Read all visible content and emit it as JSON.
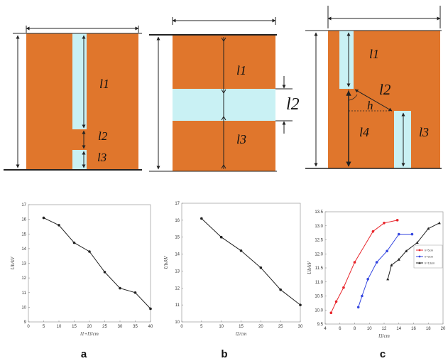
{
  "panel_labels": [
    "a",
    "b",
    "c"
  ],
  "diagrams": {
    "a": {
      "labels": [
        "l1",
        "l2",
        "l3"
      ]
    },
    "b": {
      "labels": [
        "l1",
        "l2",
        "l3"
      ]
    },
    "c": {
      "labels": [
        "l1",
        "l2",
        "h",
        "l4",
        "l3"
      ]
    }
  },
  "colors": {
    "electrode": "#E0762C",
    "gap": "#C9F1F4",
    "line": "#222222",
    "red_series": "#E8262C",
    "blue_series": "#3547E0",
    "black_series": "#222222"
  },
  "chart_data": [
    {
      "type": "line",
      "panel": "a",
      "xlabel": "l1+l3/cm",
      "ylabel": "Ub/kV",
      "xlim": [
        0,
        40
      ],
      "ylim": [
        9,
        17
      ],
      "xticks": [
        "0",
        "5",
        "10",
        "15",
        "20",
        "25",
        "30",
        "35",
        "40"
      ],
      "yticks": [
        "9",
        "10",
        "11",
        "12",
        "13",
        "14",
        "15",
        "16",
        "17"
      ],
      "x": [
        5,
        10,
        15,
        20,
        25,
        30,
        35,
        40
      ],
      "y": [
        16.1,
        15.6,
        14.4,
        13.8,
        12.4,
        11.3,
        11.0,
        9.9
      ]
    },
    {
      "type": "line",
      "panel": "b",
      "xlabel": "l2/cm",
      "ylabel": "Ub/kV",
      "xlim": [
        0,
        30
      ],
      "ylim": [
        10,
        17
      ],
      "xticks": [
        "0",
        "5",
        "10",
        "15",
        "20",
        "25",
        "30"
      ],
      "yticks": [
        "10",
        "11",
        "12",
        "13",
        "14",
        "15",
        "16",
        "17"
      ],
      "x": [
        5,
        10,
        15,
        20,
        25,
        30
      ],
      "y": [
        16.1,
        15.0,
        14.2,
        13.2,
        11.9,
        11.0
      ]
    },
    {
      "type": "line",
      "panel": "c",
      "xlabel": "l3/cm",
      "ylabel": "Ub/kV",
      "xlim": [
        4,
        20
      ],
      "ylim": [
        9.5,
        13.5
      ],
      "xticks": [
        "4",
        "6",
        "8",
        "10",
        "12",
        "14",
        "16",
        "18",
        "20"
      ],
      "yticks": [
        "9.5",
        "10.0",
        "10.5",
        "11.0",
        "11.5",
        "12.0",
        "12.5",
        "13.0",
        "13.5"
      ],
      "legend_position": "right",
      "series": [
        {
          "name": "h=5cm",
          "color": "#E8262C",
          "x": [
            4.8,
            5.5,
            6.5,
            8.0,
            10.5,
            12.0,
            13.8
          ],
          "y": [
            9.9,
            10.3,
            10.8,
            11.7,
            12.8,
            13.1,
            13.2
          ]
        },
        {
          "name": "h=9cm",
          "color": "#3547E0",
          "x": [
            8.5,
            9.0,
            9.8,
            11.0,
            12.4,
            14.0,
            15.8
          ],
          "y": [
            10.1,
            10.5,
            11.1,
            11.7,
            12.1,
            12.7,
            12.7
          ]
        },
        {
          "name": "h=13cm",
          "color": "#222222",
          "x": [
            12.5,
            13.0,
            14.0,
            15.0,
            16.5,
            18.0,
            19.5
          ],
          "y": [
            11.1,
            11.6,
            11.8,
            12.1,
            12.4,
            12.9,
            13.1
          ]
        }
      ]
    }
  ]
}
